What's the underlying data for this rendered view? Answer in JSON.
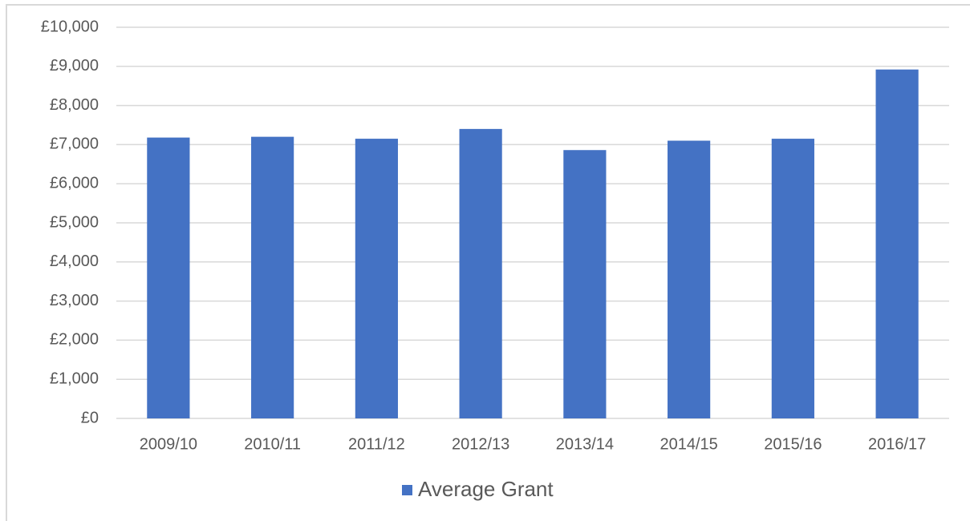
{
  "chart_data": {
    "type": "bar",
    "categories": [
      "2009/10",
      "2010/11",
      "2011/12",
      "2012/13",
      "2013/14",
      "2014/15",
      "2015/16",
      "2016/17"
    ],
    "series": [
      {
        "name": "Average Grant",
        "color": "#4472c4",
        "values": [
          7180,
          7200,
          7150,
          7400,
          6860,
          7100,
          7150,
          8920
        ]
      }
    ],
    "ylim": [
      0,
      10000
    ],
    "yticks": [
      {
        "value": 0,
        "label": "£0"
      },
      {
        "value": 1000,
        "label": "£1,000"
      },
      {
        "value": 2000,
        "label": "£2,000"
      },
      {
        "value": 3000,
        "label": "£3,000"
      },
      {
        "value": 4000,
        "label": "£4,000"
      },
      {
        "value": 5000,
        "label": "£5,000"
      },
      {
        "value": 6000,
        "label": "£6,000"
      },
      {
        "value": 7000,
        "label": "£7,000"
      },
      {
        "value": 8000,
        "label": "£8,000"
      },
      {
        "value": 9000,
        "label": "£9,000"
      },
      {
        "value": 10000,
        "label": "£10,000"
      }
    ],
    "grid": true,
    "legend": "bottom"
  }
}
